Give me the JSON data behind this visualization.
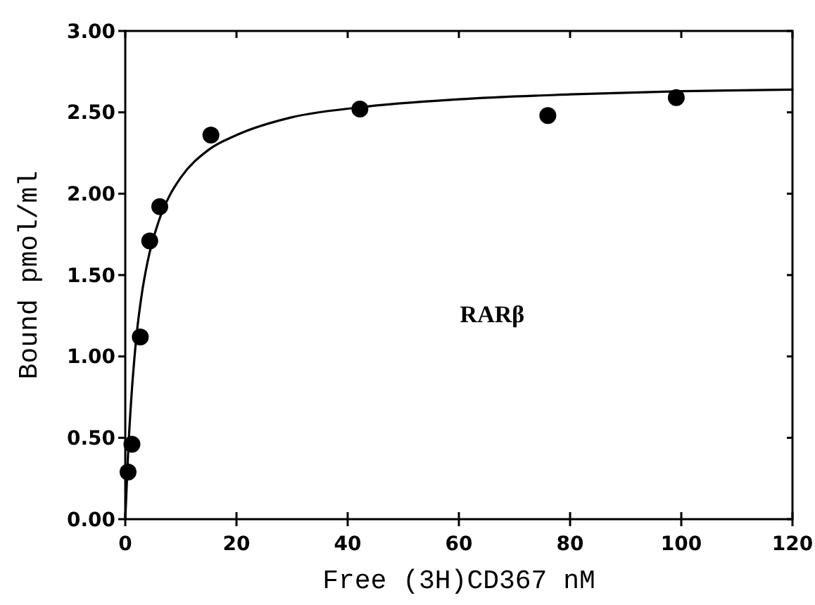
{
  "chart_data": {
    "type": "scatter",
    "xlabel": "Free (3H)CD367 nM",
    "ylabel": "Bound pmol/ml",
    "annotations": [
      "RARβ"
    ],
    "xlim": [
      0,
      120
    ],
    "xticks": [
      0,
      20,
      40,
      60,
      80,
      100,
      120
    ],
    "ylim": [
      0,
      3
    ],
    "yticks": [
      {
        "value": 0,
        "label": "0.00"
      },
      {
        "value": 0.5,
        "label": "0.50"
      },
      {
        "value": 1,
        "label": "1.00"
      },
      {
        "value": 1.5,
        "label": "1.50"
      },
      {
        "value": 2,
        "label": "2.00"
      },
      {
        "value": 2.5,
        "label": "2.50"
      },
      {
        "value": 3,
        "label": "3.00"
      }
    ],
    "grid": false,
    "series": [
      {
        "color": "#000000",
        "marker": "circle",
        "x": [
          0.5,
          1.2,
          2.7,
          4.4,
          6.2,
          15.4,
          42.2,
          76.0,
          99.1
        ],
        "values": [
          0.29,
          0.46,
          1.12,
          1.71,
          1.92,
          2.36,
          2.52,
          2.48,
          2.59
        ]
      },
      {
        "type": "line",
        "color": "#000000",
        "marker": "none",
        "line_style": "solid",
        "x": [
          0,
          0.5,
          1,
          2,
          3,
          4,
          6,
          8,
          10,
          15,
          20,
          30,
          42,
          60,
          80,
          100,
          120
        ],
        "values": [
          0,
          0.4,
          0.7,
          1.12,
          1.39,
          1.58,
          1.83,
          1.99,
          2.1,
          2.27,
          2.36,
          2.47,
          2.53,
          2.58,
          2.61,
          2.63,
          2.64
        ]
      }
    ]
  }
}
